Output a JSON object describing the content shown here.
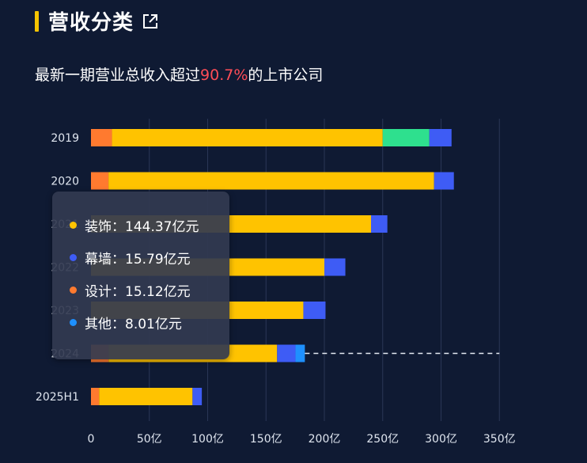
{
  "header": {
    "title": "营收分类",
    "subtitle_prefix": "最新一期营业总收入超过",
    "subtitle_highlight": "90.7%",
    "subtitle_suffix": "的上市公司",
    "highlight_color": "#ff4d57",
    "accent_color": "#f5c400"
  },
  "chart_data": {
    "type": "bar",
    "orientation": "horizontal",
    "stacked": true,
    "categories": [
      "2019",
      "2020",
      "2021",
      "2022",
      "2023",
      "2024",
      "2025H1"
    ],
    "x_ticks": [
      "0",
      "50亿",
      "100亿",
      "150亿",
      "200亿",
      "250亿",
      "300亿",
      "350亿"
    ],
    "xlim": [
      0,
      350
    ],
    "grid": "vertical",
    "series": [
      {
        "name": "设计",
        "color": "#ff7a2f",
        "values": [
          18,
          15,
          0,
          0,
          0,
          15.12,
          7
        ]
      },
      {
        "name": "装饰",
        "color": "#ffc300",
        "values": [
          232,
          279,
          240,
          200,
          182,
          144.37,
          80
        ]
      },
      {
        "name": "其他",
        "color": "#2ee08e",
        "values": [
          40,
          0,
          0,
          0,
          0,
          0,
          0
        ]
      },
      {
        "name": "幕墙",
        "color": "#3e5cf5",
        "values": [
          19,
          17,
          14,
          18,
          19,
          15.79,
          8
        ]
      },
      {
        "name": "其他",
        "color": "#1e90ff",
        "values": [
          0,
          0,
          0,
          0,
          0,
          8.01,
          0
        ]
      }
    ],
    "reference_line": {
      "category": "2024",
      "to_value": 350
    }
  },
  "tooltip": {
    "category": "2024",
    "items": [
      {
        "label": "装饰：144.37亿元",
        "color": "#ffc300"
      },
      {
        "label": "幕墙：15.79亿元",
        "color": "#3e5cf5"
      },
      {
        "label": "设计：15.12亿元",
        "color": "#ff7a2f"
      },
      {
        "label": "其他：8.01亿元",
        "color": "#1e90ff"
      }
    ]
  }
}
